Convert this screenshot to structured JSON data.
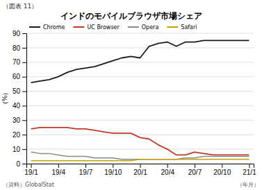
{
  "chart_data": {
    "type": "line",
    "title": "インドのモバイルブラウザ市場シェア",
    "ylabel": "（%）",
    "xlabel": "（年月）",
    "annotations": [
      "（図表 11）",
      "（資料）GlobalStat"
    ],
    "categories": [
      "19/1",
      null,
      null,
      "19/4",
      null,
      null,
      "19/7",
      null,
      null,
      "19/10",
      null,
      null,
      "20/1",
      null,
      null,
      "20/4",
      null,
      null,
      "20/7",
      null,
      null,
      "20/10",
      null,
      null,
      "21/1"
    ],
    "series": [
      {
        "name": "Chrome",
        "color": "#1a1a1a",
        "values": [
          56,
          57,
          58,
          60,
          63,
          65,
          66,
          67,
          69,
          71,
          73,
          74,
          73,
          81,
          83,
          84,
          81,
          84,
          84,
          85,
          85,
          85,
          85,
          85,
          85
        ]
      },
      {
        "name": "UC Browser",
        "color": "#c0392b",
        "values": [
          24,
          25,
          25,
          25,
          25,
          24,
          24,
          23,
          22,
          21,
          21,
          21,
          18,
          17,
          13,
          10,
          6,
          6,
          8,
          7,
          6,
          6,
          6,
          6,
          6
        ]
      },
      {
        "name": "Opera",
        "color": "#888888",
        "values": [
          8,
          7,
          7,
          6,
          5,
          5,
          5,
          4,
          4,
          4,
          3,
          3,
          3,
          3,
          3,
          3,
          3,
          4,
          4,
          5,
          5,
          5,
          5,
          5,
          5
        ]
      },
      {
        "name": "Safari",
        "color": "#c8a000",
        "values": [
          2,
          2,
          2,
          2,
          2,
          2,
          2,
          2,
          2,
          2,
          2,
          2,
          3,
          3,
          3,
          3,
          3,
          3,
          3,
          3,
          3,
          3,
          3,
          3,
          3
        ]
      }
    ],
    "ylim": [
      0,
      90
    ],
    "yticks": [
      0,
      10,
      20,
      30,
      40,
      50,
      60,
      70,
      80,
      90
    ],
    "grid": true,
    "legend": "upper left"
  }
}
